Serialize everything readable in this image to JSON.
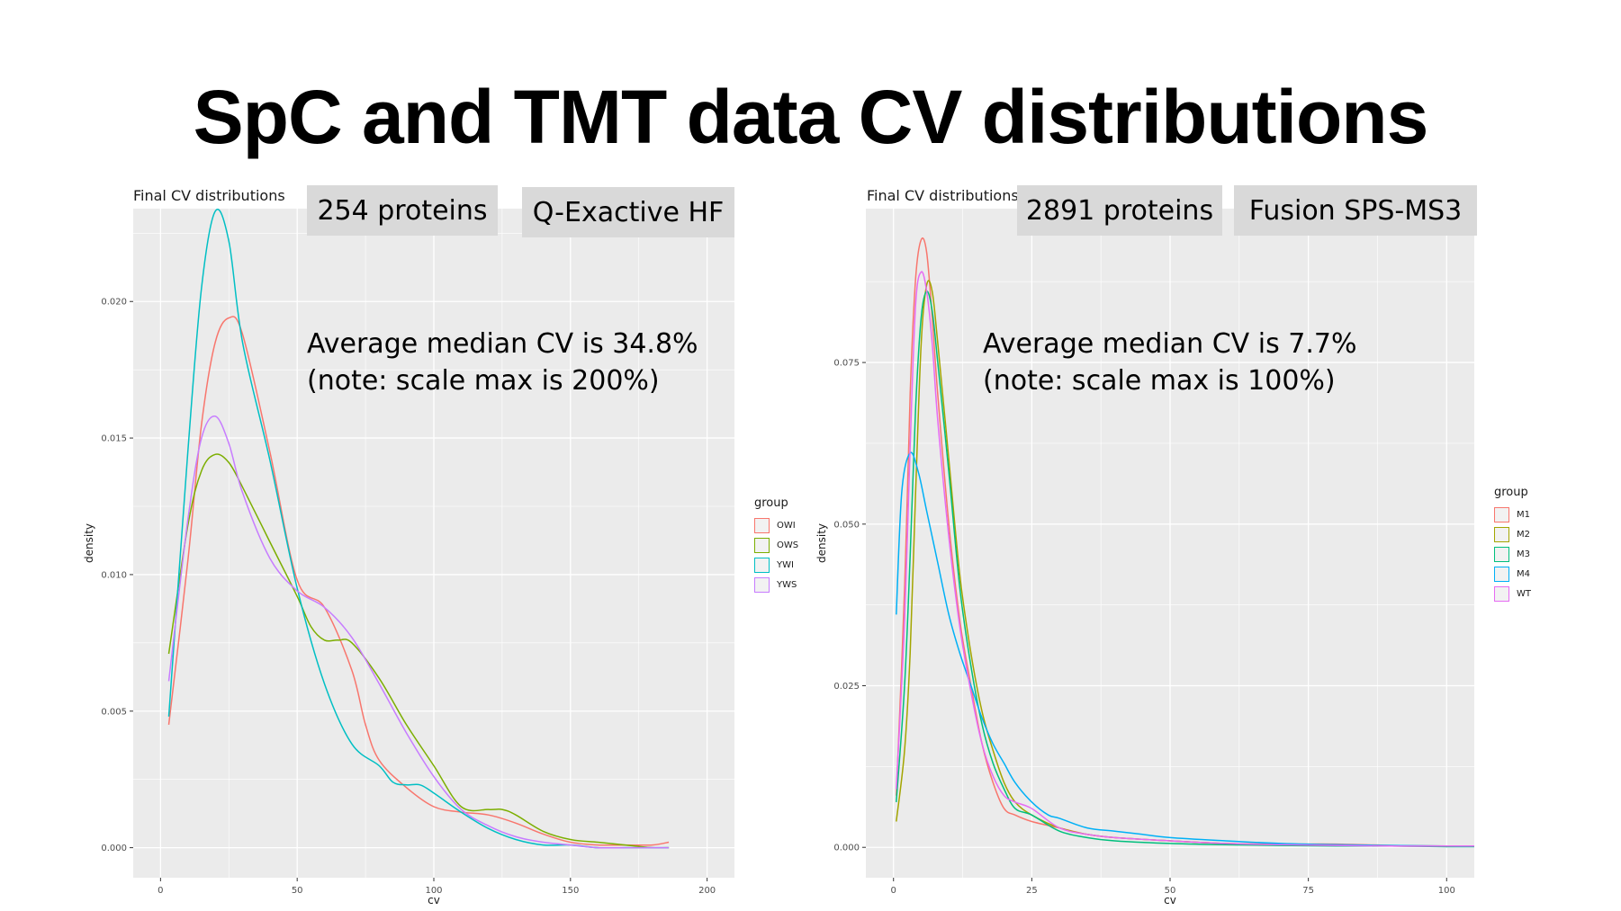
{
  "slide": {
    "title": "SpC and TMT data CV distributions"
  },
  "chart_data": [
    {
      "type": "line",
      "title": "Final CV distributions",
      "xlabel": "cv",
      "ylabel": "density",
      "xlim": [
        -10,
        210
      ],
      "ylim": [
        -0.0011,
        0.0234
      ],
      "xticks": [
        0,
        50,
        100,
        150,
        200
      ],
      "xtick_labels": [
        "0",
        "50",
        "100",
        "150",
        "200"
      ],
      "yticks": [
        0,
        0.005,
        0.01,
        0.015,
        0.02
      ],
      "ytick_labels": [
        "0.000",
        "0.005",
        "0.010",
        "0.015",
        "0.020"
      ],
      "grid": true,
      "legend_title": "group",
      "legend_position": "right",
      "boxes": [
        "254 proteins",
        "Q-Exactive HF"
      ],
      "annotation": [
        "Average median CV is 34.8%",
        "(note: scale max is 200%)"
      ],
      "series": [
        {
          "name": "OWI",
          "color": "#F8766D",
          "x": [
            3,
            10,
            15,
            20,
            25,
            30,
            40,
            50,
            60,
            70,
            75,
            80,
            90,
            100,
            110,
            120,
            130,
            140,
            150,
            160,
            170,
            180,
            186
          ],
          "y": [
            0.0045,
            0.0105,
            0.0155,
            0.0185,
            0.0194,
            0.0188,
            0.0145,
            0.0098,
            0.0088,
            0.0065,
            0.0045,
            0.0032,
            0.0022,
            0.0015,
            0.0013,
            0.0012,
            0.0009,
            0.0005,
            0.0002,
            0.0001,
            0.0001,
            0.0001,
            0.0002
          ]
        },
        {
          "name": "OWS",
          "color": "#7CAE00",
          "x": [
            3,
            10,
            15,
            20,
            25,
            30,
            40,
            50,
            55,
            60,
            65,
            70,
            80,
            90,
            100,
            110,
            120,
            125,
            130,
            140,
            150,
            160,
            170,
            180,
            186
          ],
          "y": [
            0.0071,
            0.0118,
            0.0138,
            0.0144,
            0.0141,
            0.0132,
            0.0112,
            0.0092,
            0.0081,
            0.0076,
            0.0076,
            0.0075,
            0.0062,
            0.0045,
            0.003,
            0.0015,
            0.0014,
            0.0014,
            0.0012,
            0.0006,
            0.0003,
            0.0002,
            0.0001,
            0.0,
            0.0
          ]
        },
        {
          "name": "YWI",
          "color": "#00BFC4",
          "x": [
            3,
            10,
            15,
            20,
            25,
            30,
            40,
            50,
            60,
            70,
            80,
            85,
            90,
            95,
            100,
            110,
            120,
            130,
            140,
            150,
            160,
            170,
            180,
            186
          ],
          "y": [
            0.0048,
            0.0145,
            0.0205,
            0.0233,
            0.0222,
            0.0185,
            0.0142,
            0.0095,
            0.006,
            0.0038,
            0.003,
            0.0024,
            0.0023,
            0.0023,
            0.002,
            0.0013,
            0.0007,
            0.0003,
            0.0001,
            0.0001,
            0.0,
            0.0,
            0.0,
            0.0
          ]
        },
        {
          "name": "YWS",
          "color": "#C77CFF",
          "x": [
            3,
            10,
            15,
            20,
            25,
            30,
            40,
            50,
            60,
            70,
            80,
            90,
            100,
            110,
            120,
            130,
            140,
            150,
            160,
            170,
            180,
            186
          ],
          "y": [
            0.0061,
            0.012,
            0.015,
            0.0158,
            0.0148,
            0.013,
            0.0106,
            0.0094,
            0.0088,
            0.0077,
            0.006,
            0.0042,
            0.0026,
            0.0014,
            0.0008,
            0.0004,
            0.0002,
            0.0001,
            0.0,
            0.0,
            0.0,
            0.0
          ]
        }
      ]
    },
    {
      "type": "line",
      "title": "Final CV distributions",
      "xlabel": "cv",
      "ylabel": "density",
      "xlim": [
        -5,
        105
      ],
      "ylim": [
        -0.0047,
        0.0988
      ],
      "xticks": [
        0,
        25,
        50,
        75,
        100
      ],
      "xtick_labels": [
        "0",
        "25",
        "50",
        "75",
        "100"
      ],
      "yticks": [
        0,
        0.025,
        0.05,
        0.075
      ],
      "ytick_labels": [
        "0.000",
        "0.025",
        "0.050",
        "0.075"
      ],
      "grid": true,
      "legend_title": "group",
      "legend_position": "right",
      "boxes": [
        "2891 proteins",
        "Fusion SPS-MS3"
      ],
      "annotation": [
        "Average median CV is 7.7%",
        "(note: scale max is 100%)"
      ],
      "series": [
        {
          "name": "M1",
          "color": "#F8766D",
          "x": [
            0.5,
            2,
            3,
            4,
            5,
            6,
            7,
            8,
            10,
            12,
            14,
            16,
            18,
            20,
            22,
            25,
            30,
            35,
            40,
            50,
            60,
            70,
            80,
            90,
            100,
            105
          ],
          "y": [
            0.008,
            0.04,
            0.07,
            0.088,
            0.094,
            0.092,
            0.082,
            0.07,
            0.05,
            0.035,
            0.025,
            0.016,
            0.01,
            0.006,
            0.005,
            0.004,
            0.003,
            0.002,
            0.0015,
            0.001,
            0.0006,
            0.0005,
            0.0005,
            0.0003,
            0.0002,
            0.0002
          ]
        },
        {
          "name": "M2",
          "color": "#A3A500",
          "x": [
            0.5,
            2,
            3,
            4,
            5,
            6,
            7,
            8,
            10,
            12,
            14,
            16,
            18,
            20,
            22,
            25,
            30,
            35,
            40,
            50,
            60,
            70,
            80,
            90,
            100,
            105
          ],
          "y": [
            0.004,
            0.015,
            0.03,
            0.055,
            0.078,
            0.087,
            0.086,
            0.078,
            0.06,
            0.042,
            0.03,
            0.021,
            0.015,
            0.01,
            0.007,
            0.005,
            0.003,
            0.002,
            0.0015,
            0.001,
            0.0006,
            0.0004,
            0.0003,
            0.0002,
            0.0002,
            0.0002
          ]
        },
        {
          "name": "M3",
          "color": "#00BF7D",
          "x": [
            0.5,
            2,
            3,
            4,
            5,
            6,
            7,
            8,
            10,
            12,
            14,
            16,
            18,
            20,
            22,
            25,
            30,
            35,
            40,
            50,
            60,
            70,
            80,
            90,
            100,
            105
          ],
          "y": [
            0.007,
            0.025,
            0.045,
            0.068,
            0.082,
            0.086,
            0.083,
            0.075,
            0.058,
            0.04,
            0.028,
            0.019,
            0.013,
            0.009,
            0.006,
            0.005,
            0.0025,
            0.0015,
            0.001,
            0.0006,
            0.0004,
            0.0003,
            0.0002,
            0.0002,
            0.0001,
            0.0001
          ]
        },
        {
          "name": "M4",
          "color": "#00B0F6",
          "x": [
            0.5,
            1.5,
            3,
            4.5,
            6,
            8,
            10,
            12,
            14,
            16,
            18,
            20,
            22,
            25,
            28,
            30,
            35,
            40,
            45,
            50,
            60,
            70,
            80,
            90,
            100,
            105
          ],
          "y": [
            0.036,
            0.055,
            0.061,
            0.058,
            0.052,
            0.044,
            0.036,
            0.03,
            0.025,
            0.02,
            0.016,
            0.013,
            0.01,
            0.007,
            0.005,
            0.0045,
            0.003,
            0.0025,
            0.002,
            0.0015,
            0.001,
            0.0006,
            0.0004,
            0.0003,
            0.0002,
            0.0002
          ]
        },
        {
          "name": "WT",
          "color": "#E76BF3",
          "x": [
            0.5,
            2,
            3,
            4,
            5,
            6,
            7,
            8,
            10,
            12,
            14,
            16,
            18,
            20,
            22,
            25,
            30,
            35,
            40,
            50,
            60,
            70,
            80,
            90,
            100,
            105
          ],
          "y": [
            0.009,
            0.035,
            0.062,
            0.084,
            0.089,
            0.086,
            0.078,
            0.066,
            0.048,
            0.034,
            0.024,
            0.016,
            0.011,
            0.008,
            0.007,
            0.006,
            0.003,
            0.002,
            0.0015,
            0.001,
            0.0006,
            0.0004,
            0.0003,
            0.0002,
            0.0002,
            0.0002
          ]
        }
      ]
    }
  ]
}
